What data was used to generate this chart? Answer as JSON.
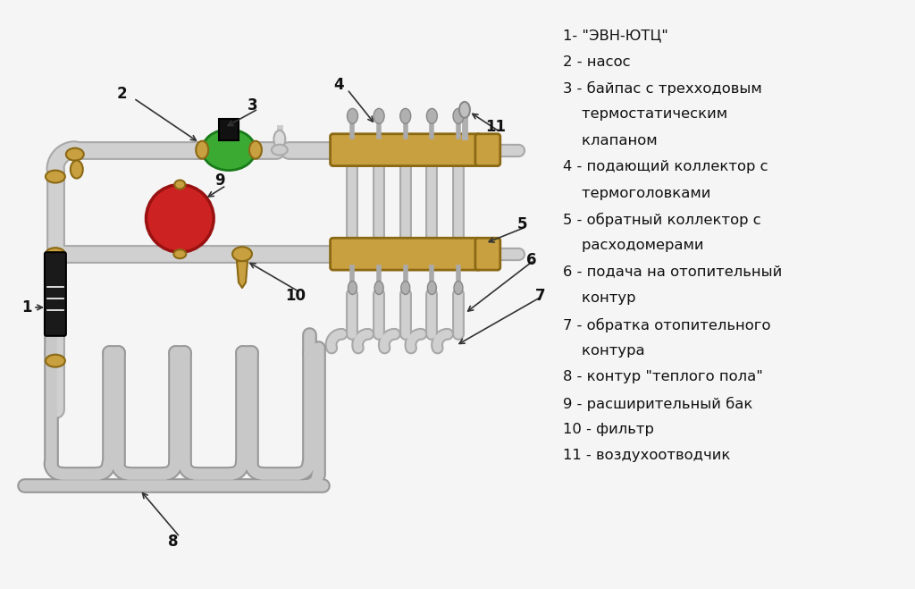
{
  "bg_color": "#f5f5f5",
  "pipe_color": "#d0d0d0",
  "pipe_shadow": "#a8a8a8",
  "brass_color": "#c8a040",
  "brass_dark": "#8B6914",
  "green_color": "#3aaa33",
  "green_dark": "#1a7a1a",
  "red_color": "#cc2222",
  "red_dark": "#991111",
  "black_color": "#111111",
  "label_color": "#111111",
  "legend_texts": [
    "1- \"ЭВН-ЮТЦ\"",
    "2 - насос",
    "3 - байпас с трехходовым",
    "    термостатическим",
    "    клапаном",
    "4 - подающий коллектор с",
    "    термоголовками",
    "5 - обратный коллектор с",
    "    расходомерами",
    "6 - подача на отопительный",
    "    контур",
    "7 - обратка отопительного",
    "    контура",
    "8 - контур \"теплого пола\"",
    "9 - расширительный бак",
    "10 - фильтр",
    "11 - воздухоотводчик"
  ]
}
